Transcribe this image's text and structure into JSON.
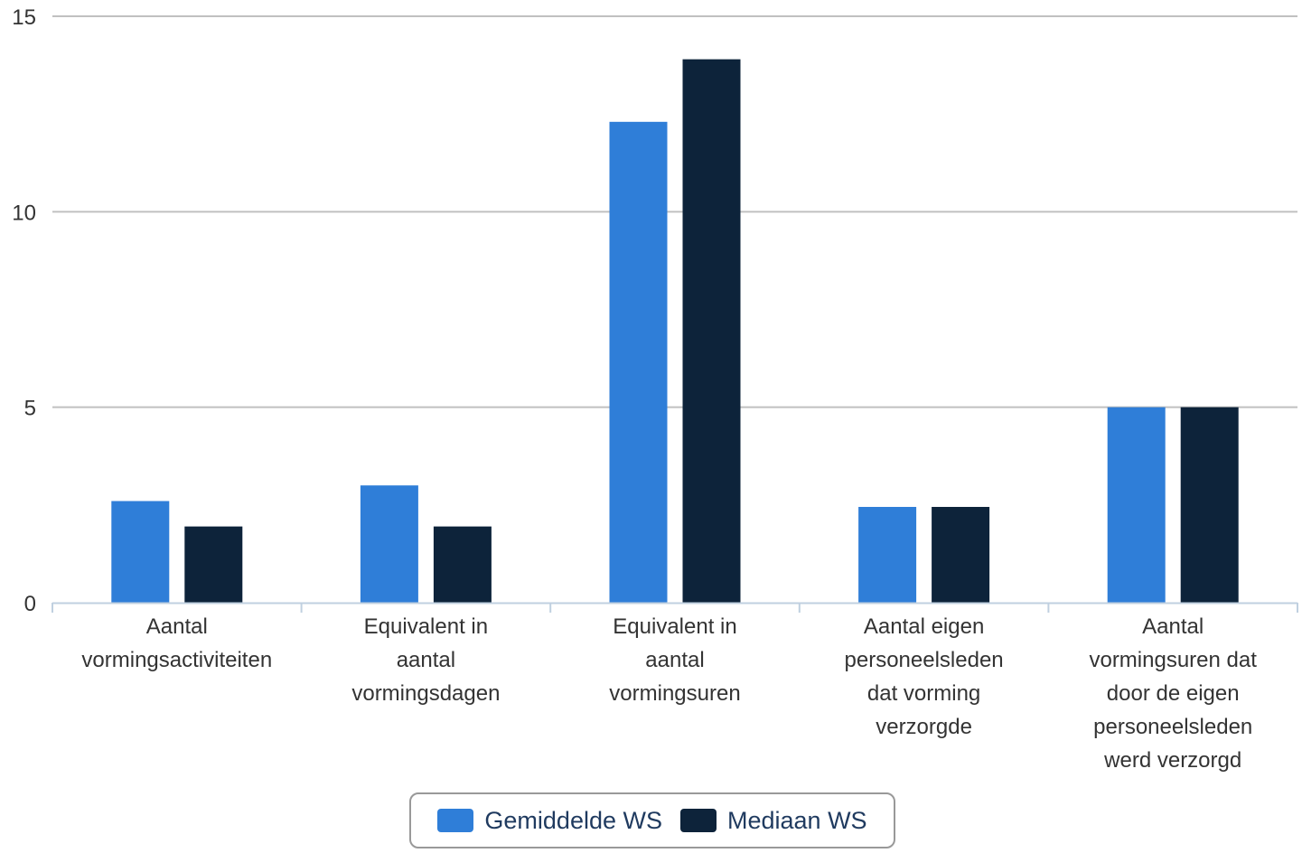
{
  "colors": {
    "series_0": "#2f7ed8",
    "series_1": "#0d233a",
    "grid": "#c0c0c0",
    "axis": "#c0d0e0"
  },
  "chart_data": {
    "type": "bar",
    "title": "",
    "xlabel": "",
    "ylabel": "",
    "ylim": [
      0,
      15
    ],
    "yticks": [
      0,
      5,
      10,
      15
    ],
    "ytick_labels": [
      "0",
      "5",
      "10",
      "15"
    ],
    "grid": true,
    "legend_position": "bottom-center",
    "categories": [
      [
        "Aantal",
        "vormingsactiviteiten"
      ],
      [
        "Equivalent in",
        "aantal",
        "vormingsdagen"
      ],
      [
        "Equivalent in",
        "aantal",
        "vormingsuren"
      ],
      [
        "Aantal eigen",
        "personeelsleden",
        "dat vorming",
        "verzorgde"
      ],
      [
        "Aantal",
        "vormingsuren dat",
        "door de eigen",
        "personeelsleden",
        "werd verzorgd"
      ]
    ],
    "series": [
      {
        "name": "Gemiddelde WS",
        "values": [
          2.6,
          3.0,
          12.3,
          2.45,
          5.0
        ]
      },
      {
        "name": "Mediaan WS",
        "values": [
          1.95,
          1.95,
          13.9,
          2.45,
          5.0
        ]
      }
    ]
  }
}
